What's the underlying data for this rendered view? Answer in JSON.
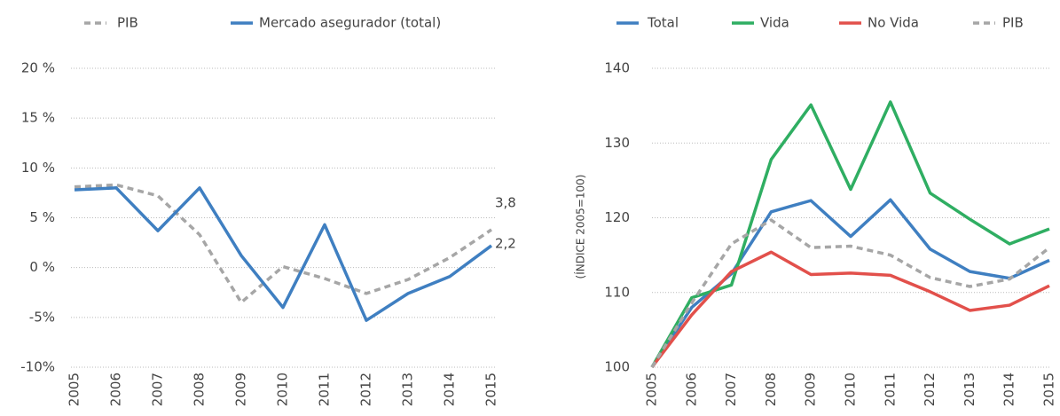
{
  "chart_data": [
    {
      "type": "line",
      "categories": [
        "2005",
        "2006",
        "2007",
        "2008",
        "2009",
        "2010",
        "2011",
        "2012",
        "2013",
        "2014",
        "2015"
      ],
      "series": [
        {
          "name": "PIB",
          "color": "#a6a6a6",
          "dashed": true,
          "values": [
            8.1,
            8.3,
            7.2,
            3.3,
            -3.5,
            0.1,
            -1.1,
            -2.6,
            -1.2,
            1.0,
            3.8
          ],
          "value_labels": [
            null,
            null,
            null,
            null,
            null,
            null,
            null,
            null,
            null,
            null,
            "3,8"
          ]
        },
        {
          "name": "Mercado asegurador (total)",
          "color": "#3f7fc1",
          "dashed": false,
          "values": [
            7.8,
            8.0,
            3.7,
            8.0,
            1.2,
            -4.0,
            4.3,
            -5.3,
            -2.6,
            -0.9,
            2.2
          ],
          "value_labels": [
            null,
            null,
            null,
            null,
            null,
            null,
            null,
            null,
            null,
            null,
            "2,2"
          ]
        }
      ],
      "ylim": [
        -10,
        20
      ],
      "yticks": [
        {
          "value": -10,
          "label": "-10%"
        },
        {
          "value": -5,
          "label": "-5%"
        },
        {
          "value": 0,
          "label": "0 %"
        },
        {
          "value": 5,
          "label": "5 %"
        },
        {
          "value": 10,
          "label": "10 %"
        },
        {
          "value": 15,
          "label": "15 %"
        },
        {
          "value": 20,
          "label": "20 %"
        }
      ],
      "grid": true
    },
    {
      "type": "line",
      "y_label": "(ÍNDICE 2005=100)",
      "categories": [
        "2005",
        "2006",
        "2007",
        "2008",
        "2009",
        "2010",
        "2011",
        "2012",
        "2013",
        "2014",
        "2015"
      ],
      "series": [
        {
          "name": "Total",
          "color": "#3f7fc1",
          "dashed": false,
          "values": [
            100,
            108,
            112.5,
            120.8,
            122.3,
            117.5,
            122.4,
            115.8,
            112.8,
            111.9,
            114.3
          ]
        },
        {
          "name": "Vida",
          "color": "#2fae62",
          "dashed": false,
          "values": [
            100,
            109.3,
            111,
            127.8,
            135.1,
            123.8,
            135.5,
            123.3,
            119.8,
            116.5,
            118.5
          ]
        },
        {
          "name": "No Vida",
          "color": "#e2504b",
          "dashed": false,
          "values": [
            100,
            107,
            112.8,
            115.4,
            112.4,
            112.6,
            112.3,
            110.1,
            107.6,
            108.3,
            110.9
          ]
        },
        {
          "name": "PIB",
          "color": "#a6a6a6",
          "dashed": true,
          "values": [
            100,
            108.6,
            116.5,
            119.7,
            116.0,
            116.2,
            115,
            112,
            110.8,
            111.8,
            116
          ]
        }
      ],
      "ylim": [
        100,
        140
      ],
      "yticks": [
        100,
        110,
        120,
        130,
        140
      ],
      "grid": true
    }
  ]
}
